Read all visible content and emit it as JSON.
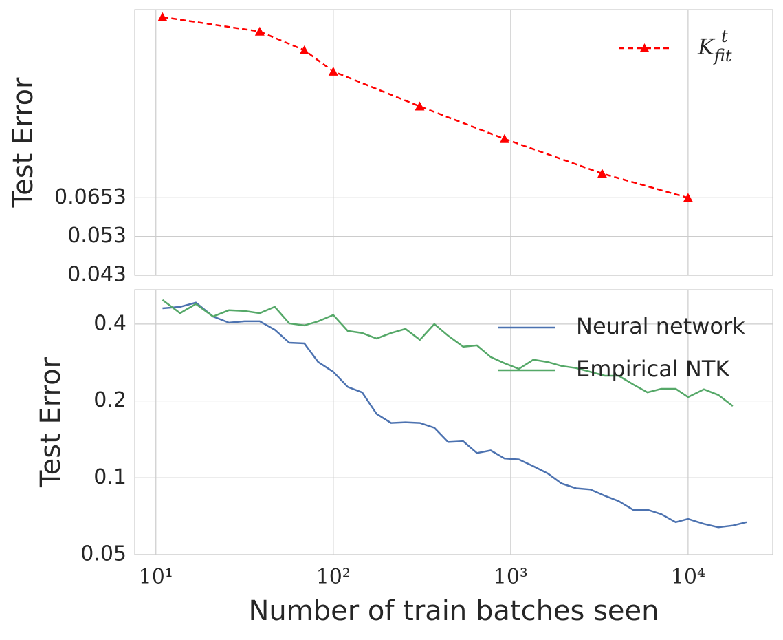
{
  "chart_data": [
    {
      "type": "line",
      "ylabel": "Test Error",
      "xlog": true,
      "ylog": true,
      "grid": true,
      "legend": "upper right",
      "xlim": [
        7.6,
        30000
      ],
      "xticks": [
        10,
        100,
        1000,
        10000
      ],
      "xticklabels": false,
      "ylim": [
        0.043,
        0.18
      ],
      "yticks": [
        0.043,
        0.053,
        0.0653
      ],
      "x": [
        10.9,
        38.5,
        68.7,
        100,
        307,
        923,
        3280,
        10000
      ],
      "series": [
        {
          "name": "K_{fit}^t",
          "color": "#ff0000",
          "dash": true,
          "marker": "triangle",
          "values": [
            0.173,
            0.16,
            0.1446,
            0.129,
            0.1069,
            0.0897,
            0.0744,
            0.0653
          ]
        }
      ]
    },
    {
      "type": "line",
      "xlabel": "Number of train batches seen",
      "ylabel": "Test Error",
      "xlog": true,
      "ylog": true,
      "grid": true,
      "legend": "upper right",
      "xlim": [
        7.6,
        30000
      ],
      "xticks": [
        {
          "value": 10,
          "label": "10¹"
        },
        {
          "value": 100,
          "label": "10²"
        },
        {
          "value": 1000,
          "label": "10³"
        },
        {
          "value": 10000,
          "label": "10⁴"
        }
      ],
      "ylim": [
        0.05,
        0.545
      ],
      "yticks": [
        0.05,
        0.1,
        0.2,
        0.4
      ],
      "x": [
        10.9,
        13.7,
        16.8,
        21.0,
        25.8,
        31.6,
        38.5,
        46.8,
        56.5,
        68.7,
        82.2,
        100,
        120.6,
        145.5,
        175.5,
        211.7,
        255.3,
        307.9,
        371.4,
        443.9,
        540.3,
        645.8,
        771.9,
        922.9,
        1113,
        1343,
        1619,
        1936,
        2335,
        2817,
        3396,
        4060,
        4897,
        5906,
        7061,
        8515,
        10000,
        12280,
        14810,
        17860,
        21360
      ],
      "series": [
        {
          "name": "Neural network",
          "color": "#4c72b0",
          "values": [
            0.461,
            0.467,
            0.485,
            0.428,
            0.405,
            0.41,
            0.41,
            0.38,
            0.338,
            0.336,
            0.284,
            0.26,
            0.227,
            0.216,
            0.178,
            0.164,
            0.165,
            0.164,
            0.157,
            0.138,
            0.139,
            0.125,
            0.128,
            0.119,
            0.118,
            0.111,
            0.104,
            0.095,
            0.091,
            0.09,
            0.085,
            0.081,
            0.075,
            0.075,
            0.072,
            0.067,
            0.069,
            0.066,
            0.064,
            0.065,
            0.067
          ]
        },
        {
          "name": "Empirical NTK",
          "color": "#55a868",
          "values": [
            0.497,
            0.441,
            0.479,
            0.428,
            0.453,
            0.45,
            0.441,
            0.467,
            0.402,
            0.395,
            0.41,
            0.434,
            0.376,
            0.369,
            0.351,
            0.369,
            0.383,
            0.347,
            0.4,
            0.36,
            0.326,
            0.33,
            0.297,
            0.281,
            0.267,
            0.29,
            0.284,
            0.274,
            0.269,
            0.26,
            0.251,
            0.251,
            0.232,
            0.216,
            0.223,
            0.223,
            0.207,
            0.222,
            0.211,
            0.191,
            null
          ]
        }
      ]
    }
  ]
}
